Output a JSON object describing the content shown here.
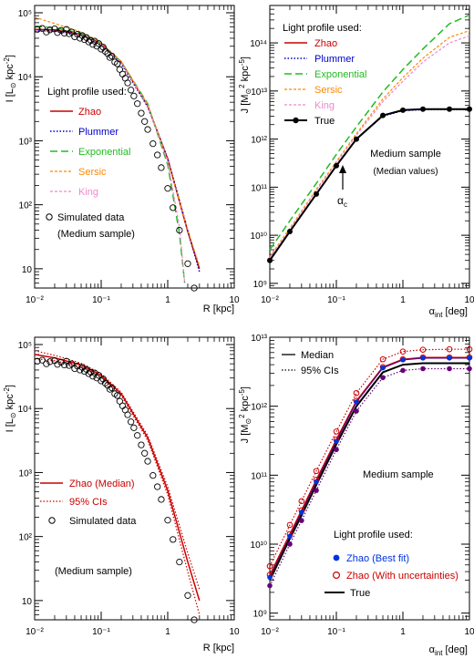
{
  "colors": {
    "zhao": "#cc0000",
    "plummer": "#0000cc",
    "exponential": "#22bb22",
    "sersic": "#ff8800",
    "king": "#ee88cc",
    "true": "#000000",
    "zhao_fit": "#0033dd",
    "purple": "#660077",
    "marker": "#000000"
  },
  "chart_data": [
    {
      "id": "top-left",
      "type": "line",
      "xlabel": "R [kpc]",
      "ylabel": "I [L⊙ kpc⁻²]",
      "xscale": "log",
      "yscale": "log",
      "xlim": [
        0.01,
        10
      ],
      "ylim": [
        5,
        130000
      ],
      "xticks": [
        "10⁻²",
        "10⁻¹",
        "1",
        "10"
      ],
      "yticks": [
        "10",
        "10²",
        "10³",
        "10⁴",
        "10⁵"
      ],
      "legend": {
        "title": "Light profile used:",
        "entries": [
          "Zhao",
          "Plummer",
          "Exponential",
          "Sersic",
          "King",
          "Simulated data",
          "(Medium sample)"
        ],
        "placement": "left"
      },
      "series": [
        {
          "name": "Zhao",
          "x": [
            0.01,
            0.02,
            0.05,
            0.1,
            0.2,
            0.5,
            1,
            2,
            3
          ],
          "values": [
            55000,
            54000,
            46000,
            33000,
            17000,
            3500,
            520,
            38,
            10
          ]
        },
        {
          "name": "Plummer",
          "x": [
            0.01,
            0.02,
            0.05,
            0.1,
            0.2,
            0.5,
            1,
            2,
            3
          ],
          "values": [
            52000,
            51500,
            46000,
            32000,
            16000,
            3400,
            530,
            40,
            9
          ]
        },
        {
          "name": "Exponential",
          "x": [
            0.01,
            0.02,
            0.05,
            0.1,
            0.2,
            0.5,
            1,
            1.5,
            1.8
          ],
          "values": [
            62000,
            58000,
            48000,
            33000,
            17000,
            3800,
            420,
            35,
            6
          ]
        },
        {
          "name": "Sersic",
          "x": [
            0.01,
            0.02,
            0.05,
            0.1,
            0.2,
            0.5,
            1,
            2,
            3
          ],
          "values": [
            85000,
            68000,
            50000,
            34000,
            17500,
            3700,
            500,
            40,
            11
          ]
        },
        {
          "name": "King",
          "x": [
            0.01,
            0.02,
            0.05,
            0.1,
            0.2,
            0.5,
            1,
            1.5,
            1.8
          ],
          "values": [
            52000,
            51000,
            45000,
            32000,
            16500,
            3500,
            470,
            45,
            6
          ]
        }
      ],
      "scatter": {
        "name": "Simulated data",
        "x": [
          0.011,
          0.013,
          0.015,
          0.017,
          0.02,
          0.022,
          0.025,
          0.028,
          0.03,
          0.033,
          0.036,
          0.04,
          0.044,
          0.048,
          0.052,
          0.056,
          0.06,
          0.065,
          0.07,
          0.075,
          0.08,
          0.086,
          0.092,
          0.1,
          0.107,
          0.115,
          0.125,
          0.135,
          0.145,
          0.16,
          0.175,
          0.19,
          0.21,
          0.23,
          0.25,
          0.28,
          0.31,
          0.35,
          0.4,
          0.45,
          0.5,
          0.6,
          0.7,
          0.8,
          1.0,
          1.2,
          1.5,
          2.0,
          2.5
        ],
        "values": [
          55000,
          57000,
          50000,
          54000,
          56000,
          49000,
          53000,
          48000,
          55000,
          47000,
          50000,
          42000,
          46000,
          40000,
          44000,
          38000,
          41000,
          35000,
          37000,
          32000,
          36000,
          30000,
          33000,
          27000,
          29000,
          25000,
          23000,
          20000,
          21000,
          17000,
          16000,
          13000,
          11000,
          9500,
          8000,
          6200,
          5000,
          3800,
          2700,
          2000,
          1500,
          900,
          600,
          380,
          180,
          90,
          40,
          12,
          5
        ]
      }
    },
    {
      "id": "top-right",
      "type": "line",
      "xlabel": "αint [deg]",
      "ylabel": "J [M⊙² kpc⁻⁵]",
      "xscale": "log",
      "yscale": "log",
      "xlim": [
        0.01,
        10
      ],
      "ylim": [
        800000000,
        600000000000000
      ],
      "xticks": [
        "10⁻²",
        "10⁻¹",
        "1",
        "10"
      ],
      "yticks": [
        "10⁹",
        "10¹⁰",
        "10¹¹",
        "10¹²",
        "10¹³",
        "10¹⁴"
      ],
      "legend": {
        "title": "Light profile used:",
        "entries": [
          "Zhao",
          "Plummer",
          "Exponential",
          "Sersic",
          "King",
          "True"
        ],
        "placement": "top-left"
      },
      "annotations": [
        "Medium sample",
        "(Median values)",
        "αc"
      ],
      "series": [
        {
          "name": "Zhao",
          "x": [
            0.01,
            0.02,
            0.05,
            0.1,
            0.2,
            0.5,
            1,
            2,
            5,
            10
          ],
          "values": [
            3000000000,
            12000000000,
            72000000000,
            280000000000,
            1000000000000,
            3100000000000,
            4000000000000,
            4200000000000,
            4200000000000,
            4200000000000
          ]
        },
        {
          "name": "Plummer",
          "x": [
            0.01,
            0.02,
            0.05,
            0.1,
            0.2,
            0.5,
            1,
            2,
            5,
            10
          ],
          "values": [
            3000000000,
            12000000000,
            72000000000,
            280000000000,
            1000000000000,
            3000000000000,
            3900000000000,
            4100000000000,
            4100000000000,
            4100000000000
          ]
        },
        {
          "name": "Exponential",
          "x": [
            0.01,
            0.02,
            0.05,
            0.1,
            0.2,
            0.5,
            1,
            2,
            5,
            10
          ],
          "values": [
            5000000000,
            20000000000,
            120000000000,
            480000000000,
            1800000000000,
            9500000000000,
            28000000000000,
            75000000000000,
            250000000000000,
            380000000000000
          ]
        },
        {
          "name": "Sersic",
          "x": [
            0.01,
            0.02,
            0.05,
            0.1,
            0.2,
            0.5,
            1,
            2,
            5,
            10
          ],
          "values": [
            3600000000,
            14000000000,
            90000000000,
            340000000000,
            1300000000000,
            6800000000000,
            19000000000000,
            48000000000000,
            130000000000000,
            180000000000000
          ]
        },
        {
          "name": "King",
          "x": [
            0.01,
            0.02,
            0.05,
            0.1,
            0.2,
            0.5,
            1,
            2,
            5,
            10
          ],
          "values": [
            3400000000,
            13000000000,
            85000000000,
            320000000000,
            1200000000000,
            6000000000000,
            16000000000000,
            40000000000000,
            100000000000000,
            140000000000000
          ]
        },
        {
          "name": "True",
          "x": [
            0.01,
            0.02,
            0.05,
            0.1,
            0.2,
            0.5,
            1,
            2,
            5,
            10
          ],
          "values": [
            3000000000,
            12000000000,
            72000000000,
            280000000000,
            1000000000000,
            3100000000000,
            4000000000000,
            4200000000000,
            4200000000000,
            4200000000000
          ]
        }
      ]
    },
    {
      "id": "bottom-left",
      "type": "line",
      "xlabel": "R [kpc]",
      "ylabel": "I [L⊙ kpc⁻²]",
      "xscale": "log",
      "yscale": "log",
      "xlim": [
        0.01,
        10
      ],
      "ylim": [
        5,
        130000
      ],
      "xticks": [
        "10⁻²",
        "10⁻¹",
        "1",
        "10"
      ],
      "yticks": [
        "10",
        "10²",
        "10³",
        "10⁴",
        "10⁵"
      ],
      "legend": {
        "entries": [
          "Zhao (Median)",
          "95% CIs",
          "Simulated data"
        ],
        "placement": "middle-left"
      },
      "annotations": [
        "(Medium sample)"
      ],
      "series": [
        {
          "name": "Zhao (Median)",
          "x": [
            0.01,
            0.02,
            0.05,
            0.1,
            0.2,
            0.5,
            1,
            2,
            3
          ],
          "values": [
            70000,
            62000,
            48000,
            33000,
            17000,
            3500,
            520,
            40,
            10
          ]
        },
        {
          "name": "95% CIs",
          "x": [
            0.01,
            0.02,
            0.05,
            0.1,
            0.2,
            0.5,
            1,
            2,
            3
          ],
          "values": [
            80000,
            68000,
            51000,
            35000,
            18000,
            3800,
            600,
            55,
            15
          ]
        },
        {
          "name": "95% CIs",
          "x": [
            0.01,
            0.02,
            0.05,
            0.1,
            0.2,
            0.5,
            1,
            2,
            3
          ],
          "values": [
            60000,
            56000,
            45000,
            31000,
            16000,
            3200,
            450,
            28,
            6
          ]
        }
      ],
      "scatter": {
        "name": "Simulated data",
        "x": [
          0.011,
          0.013,
          0.015,
          0.017,
          0.02,
          0.022,
          0.025,
          0.028,
          0.03,
          0.033,
          0.036,
          0.04,
          0.044,
          0.048,
          0.052,
          0.056,
          0.06,
          0.065,
          0.07,
          0.075,
          0.08,
          0.086,
          0.092,
          0.1,
          0.107,
          0.115,
          0.125,
          0.135,
          0.145,
          0.16,
          0.175,
          0.19,
          0.21,
          0.23,
          0.25,
          0.28,
          0.31,
          0.35,
          0.4,
          0.45,
          0.5,
          0.6,
          0.7,
          0.8,
          1.0,
          1.2,
          1.5,
          2.0,
          2.5
        ],
        "values": [
          55000,
          57000,
          50000,
          54000,
          56000,
          49000,
          53000,
          48000,
          55000,
          47000,
          50000,
          42000,
          46000,
          40000,
          44000,
          38000,
          41000,
          35000,
          37000,
          32000,
          36000,
          30000,
          33000,
          27000,
          29000,
          25000,
          23000,
          20000,
          21000,
          17000,
          16000,
          13000,
          11000,
          9500,
          8000,
          6200,
          5000,
          3800,
          2700,
          2000,
          1500,
          900,
          600,
          380,
          180,
          90,
          40,
          12,
          5
        ]
      }
    },
    {
      "id": "bottom-right",
      "type": "line",
      "xlabel": "αint [deg]",
      "ylabel": "J [M⊙² kpc⁻⁵]",
      "xscale": "log",
      "yscale": "log",
      "xlim": [
        0.01,
        10
      ],
      "ylim": [
        800000000,
        10000000000000
      ],
      "xticks": [
        "10⁻²",
        "10⁻¹",
        "1",
        "10"
      ],
      "yticks": [
        "10⁹",
        "10¹⁰",
        "10¹¹",
        "10¹²",
        "10¹³"
      ],
      "legend": {
        "top_entries": [
          "Median",
          "95% CIs"
        ],
        "title": "Light profile used:",
        "entries": [
          "Zhao (Best fit)",
          "Zhao (With uncertainties)",
          "True"
        ],
        "placement": "top-left / bottom-right"
      },
      "annotations": [
        "Medium sample"
      ],
      "x_points": [
        0.01,
        0.02,
        0.03,
        0.05,
        0.1,
        0.2,
        0.5,
        1,
        2,
        5,
        10
      ],
      "series": [
        {
          "name": "True",
          "values": [
            3000000000,
            12000000000,
            26000000000,
            72000000000,
            280000000000,
            1000000000000,
            3100000000000,
            4000000000000,
            4200000000000,
            4200000000000,
            4200000000000
          ]
        },
        {
          "name": "Zhao (Best fit)",
          "values": [
            3300000000,
            13000000000,
            29000000000,
            80000000000,
            310000000000,
            1150000000000,
            3600000000000,
            4700000000000,
            5000000000000,
            5000000000000,
            5000000000000
          ]
        },
        {
          "name": "Zhao (With uncertainties) median",
          "values": [
            3600000000,
            14000000000,
            31000000000,
            86000000000,
            330000000000,
            1200000000000,
            3700000000000,
            4800000000000,
            5100000000000,
            5100000000000,
            5100000000000
          ]
        },
        {
          "name": "95% CIs upper",
          "values": [
            4800000000,
            19000000000,
            42000000000,
            115000000000,
            430000000000,
            1550000000000,
            4800000000000,
            6200000000000,
            6600000000000,
            6700000000000,
            6700000000000
          ]
        },
        {
          "name": "95% CIs lower",
          "values": [
            2500000000,
            10000000000,
            22000000000,
            60000000000,
            235000000000,
            850000000000,
            2600000000000,
            3300000000000,
            3500000000000,
            3500000000000,
            3500000000000
          ]
        }
      ]
    }
  ],
  "labels": {
    "tl": {
      "legend_title": "Light profile used:",
      "zhao": "Zhao",
      "plummer": "Plummer",
      "exponential": "Exponential",
      "sersic": "Sersic",
      "king": "King",
      "sim": "Simulated data",
      "sample": "(Medium sample)",
      "xlabel": "R [kpc]"
    },
    "tr": {
      "legend_title": "Light profile used:",
      "zhao": "Zhao",
      "plummer": "Plummer",
      "exponential": "Exponential",
      "sersic": "Sersic",
      "king": "King",
      "true": "True",
      "ann1": "Medium sample",
      "ann2": "(Median values)",
      "alpha_c": "α",
      "alpha_c_sub": "c",
      "xlabel_main": "α",
      "xlabel_sub": "int",
      "xlabel_unit": " [deg]"
    },
    "bl": {
      "zhao": "Zhao (Median)",
      "ci": "95% CIs",
      "sim": "Simulated data",
      "sample": "(Medium sample)",
      "xlabel": "R [kpc]"
    },
    "br": {
      "median": "Median",
      "ci": "95% CIs",
      "ann": "Medium sample",
      "legend_title": "Light profile used:",
      "bestfit": "Zhao (Best fit)",
      "uncert": "Zhao (With uncertainties)",
      "true": "True",
      "xlabel_main": "α",
      "xlabel_sub": "int",
      "xlabel_unit": " [deg]"
    },
    "ylabel_I_main": "I [L",
    "ylabel_I_sun": "⊙",
    "ylabel_I_rest": " kpc",
    "ylabel_I_exp": "-2",
    "ylabel_I_end": "]",
    "ylabel_J_main": "J [M",
    "ylabel_J_sun": "⊙",
    "ylabel_J_sq": "2",
    "ylabel_J_rest": " kpc",
    "ylabel_J_exp": "-5",
    "ylabel_J_end": "]"
  }
}
